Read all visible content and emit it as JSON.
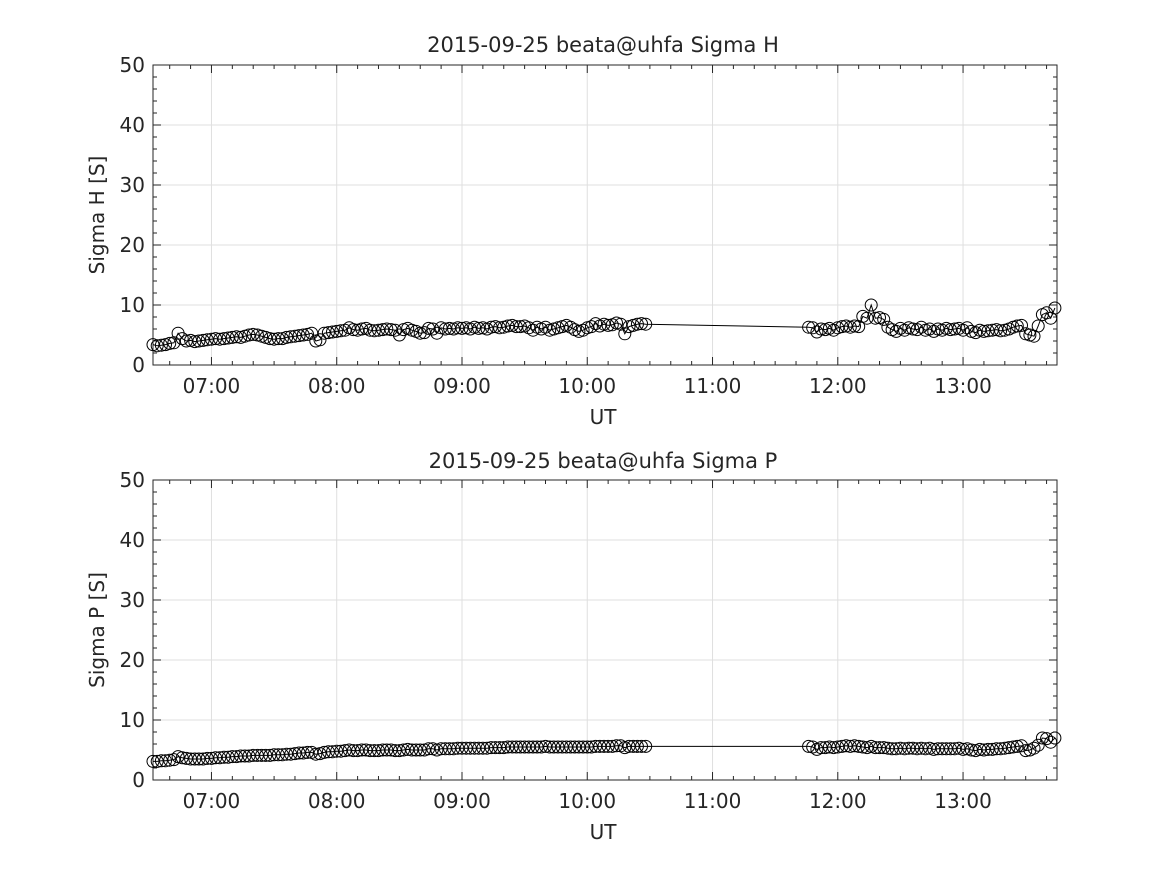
{
  "chart_data": [
    {
      "type": "scatter",
      "title": "2015-09-25  beata@uhfa Sigma H",
      "xlabel": "UT",
      "ylabel": "Sigma H [S]",
      "xlim": [
        "06:32",
        "13:45"
      ],
      "ylim": [
        0,
        50
      ],
      "x_ticks": [
        "07:00",
        "08:00",
        "09:00",
        "10:00",
        "11:00",
        "12:00",
        "13:00"
      ],
      "y_ticks": [
        "0",
        "10",
        "20",
        "30",
        "40",
        "50"
      ],
      "grid": true,
      "marker": "open-circle",
      "connected": true,
      "series": [
        {
          "x": [
            "06:32",
            "06:34",
            "06:36",
            "06:38",
            "06:40",
            "06:42",
            "06:44",
            "06:46",
            "06:48",
            "06:50",
            "06:52",
            "06:54",
            "06:56",
            "06:58",
            "07:00",
            "07:02",
            "07:04",
            "07:06",
            "07:08",
            "07:10",
            "07:12",
            "07:14",
            "07:16",
            "07:18",
            "07:20",
            "07:22",
            "07:24",
            "07:26",
            "07:28",
            "07:30",
            "07:32",
            "07:34",
            "07:36",
            "07:38",
            "07:40",
            "07:42",
            "07:44",
            "07:46",
            "07:48",
            "07:50",
            "07:52",
            "07:54",
            "07:56",
            "07:58",
            "08:00",
            "08:02",
            "08:04",
            "08:06",
            "08:08",
            "08:10",
            "08:12",
            "08:14",
            "08:16",
            "08:18",
            "08:20",
            "08:22",
            "08:24",
            "08:26",
            "08:28",
            "08:30",
            "08:32",
            "08:34",
            "08:36",
            "08:38",
            "08:40",
            "08:42",
            "08:44",
            "08:46",
            "08:48",
            "08:50",
            "08:52",
            "08:54",
            "08:56",
            "08:58",
            "09:00",
            "09:02",
            "09:04",
            "09:06",
            "09:08",
            "09:10",
            "09:12",
            "09:14",
            "09:16",
            "09:18",
            "09:20",
            "09:22",
            "09:24",
            "09:26",
            "09:28",
            "09:30",
            "09:32",
            "09:34",
            "09:36",
            "09:38",
            "09:40",
            "09:42",
            "09:44",
            "09:46",
            "09:48",
            "09:50",
            "09:52",
            "09:54",
            "09:56",
            "09:58",
            "10:00",
            "10:02",
            "10:04",
            "10:06",
            "10:08",
            "10:10",
            "10:12",
            "10:14",
            "10:16",
            "10:18",
            "10:20",
            "10:22",
            "10:24",
            "10:26",
            "10:28",
            "11:46",
            "11:48",
            "11:50",
            "11:52",
            "11:54",
            "11:56",
            "11:58",
            "12:00",
            "12:02",
            "12:04",
            "12:06",
            "12:08",
            "12:10",
            "12:12",
            "12:14",
            "12:16",
            "12:18",
            "12:20",
            "12:22",
            "12:24",
            "12:26",
            "12:28",
            "12:30",
            "12:32",
            "12:34",
            "12:36",
            "12:38",
            "12:40",
            "12:42",
            "12:44",
            "12:46",
            "12:48",
            "12:50",
            "12:52",
            "12:54",
            "12:56",
            "12:58",
            "13:00",
            "13:02",
            "13:04",
            "13:06",
            "13:08",
            "13:10",
            "13:12",
            "13:14",
            "13:16",
            "13:18",
            "13:20",
            "13:22",
            "13:24",
            "13:26",
            "13:28",
            "13:30",
            "13:32",
            "13:34",
            "13:36",
            "13:38",
            "13:40",
            "13:42",
            "13:44"
          ],
          "y": [
            3.4,
            3.2,
            3.3,
            3.4,
            3.6,
            3.7,
            5.3,
            4.4,
            4.0,
            4.1,
            3.9,
            4.0,
            4.1,
            4.2,
            4.3,
            4.4,
            4.3,
            4.4,
            4.5,
            4.6,
            4.7,
            4.6,
            4.8,
            5.0,
            5.1,
            5.0,
            4.8,
            4.6,
            4.4,
            4.3,
            4.4,
            4.4,
            4.6,
            4.7,
            4.8,
            4.9,
            5.0,
            5.1,
            5.3,
            4.0,
            4.2,
            5.3,
            5.4,
            5.5,
            5.6,
            5.7,
            5.8,
            6.2,
            5.9,
            5.8,
            6.0,
            6.1,
            5.8,
            5.7,
            5.8,
            5.9,
            6.0,
            5.9,
            5.8,
            5.0,
            5.9,
            6.1,
            5.8,
            5.6,
            5.3,
            5.4,
            6.1,
            6.0,
            5.3,
            6.2,
            6.0,
            6.1,
            6.0,
            6.2,
            6.1,
            6.2,
            6.0,
            6.3,
            6.1,
            6.2,
            6.0,
            6.3,
            6.4,
            6.2,
            6.3,
            6.5,
            6.6,
            6.4,
            6.4,
            6.5,
            6.2,
            5.8,
            6.3,
            6.0,
            6.3,
            5.8,
            6.0,
            6.2,
            6.4,
            6.6,
            6.3,
            5.9,
            5.6,
            5.8,
            6.2,
            6.4,
            6.9,
            6.5,
            6.8,
            6.6,
            6.7,
            7.0,
            6.8,
            5.2,
            6.4,
            6.6,
            6.8,
            6.9,
            6.8,
            6.3,
            6.2,
            5.5,
            6.0,
            5.9,
            6.1,
            5.8,
            6.2,
            6.4,
            6.5,
            6.3,
            6.5,
            6.4,
            8.1,
            7.8,
            10.0,
            7.8,
            7.9,
            7.6,
            6.3,
            5.9,
            5.6,
            6.1,
            5.8,
            6.2,
            6.0,
            5.9,
            6.3,
            5.8,
            6.0,
            5.6,
            6.0,
            5.8,
            6.1,
            5.9,
            6.0,
            6.1,
            5.8,
            6.2,
            5.6,
            5.4,
            5.8,
            5.6,
            5.7,
            5.8,
            5.9,
            5.7,
            5.8,
            6.0,
            6.3,
            6.5,
            6.6,
            5.2,
            5.0,
            4.8,
            6.5,
            8.4,
            8.7,
            7.8,
            9.5
          ]
        }
      ]
    },
    {
      "type": "scatter",
      "title": "2015-09-25  beata@uhfa Sigma P",
      "xlabel": "UT",
      "ylabel": "Sigma P [S]",
      "xlim": [
        "06:32",
        "13:45"
      ],
      "ylim": [
        0,
        50
      ],
      "x_ticks": [
        "07:00",
        "08:00",
        "09:00",
        "10:00",
        "11:00",
        "12:00",
        "13:00"
      ],
      "y_ticks": [
        "0",
        "10",
        "20",
        "30",
        "40",
        "50"
      ],
      "grid": true,
      "marker": "open-circle",
      "connected": true,
      "series": [
        {
          "x": [
            "06:32",
            "06:34",
            "06:36",
            "06:38",
            "06:40",
            "06:42",
            "06:44",
            "06:46",
            "06:48",
            "06:50",
            "06:52",
            "06:54",
            "06:56",
            "06:58",
            "07:00",
            "07:02",
            "07:04",
            "07:06",
            "07:08",
            "07:10",
            "07:12",
            "07:14",
            "07:16",
            "07:18",
            "07:20",
            "07:22",
            "07:24",
            "07:26",
            "07:28",
            "07:30",
            "07:32",
            "07:34",
            "07:36",
            "07:38",
            "07:40",
            "07:42",
            "07:44",
            "07:46",
            "07:48",
            "07:50",
            "07:52",
            "07:54",
            "07:56",
            "07:58",
            "08:00",
            "08:02",
            "08:04",
            "08:06",
            "08:08",
            "08:10",
            "08:12",
            "08:14",
            "08:16",
            "08:18",
            "08:20",
            "08:22",
            "08:24",
            "08:26",
            "08:28",
            "08:30",
            "08:32",
            "08:34",
            "08:36",
            "08:38",
            "08:40",
            "08:42",
            "08:44",
            "08:46",
            "08:48",
            "08:50",
            "08:52",
            "08:54",
            "08:56",
            "08:58",
            "09:00",
            "09:02",
            "09:04",
            "09:06",
            "09:08",
            "09:10",
            "09:12",
            "09:14",
            "09:16",
            "09:18",
            "09:20",
            "09:22",
            "09:24",
            "09:26",
            "09:28",
            "09:30",
            "09:32",
            "09:34",
            "09:36",
            "09:38",
            "09:40",
            "09:42",
            "09:44",
            "09:46",
            "09:48",
            "09:50",
            "09:52",
            "09:54",
            "09:56",
            "09:58",
            "10:00",
            "10:02",
            "10:04",
            "10:06",
            "10:08",
            "10:10",
            "10:12",
            "10:14",
            "10:16",
            "10:18",
            "10:20",
            "10:22",
            "10:24",
            "10:26",
            "10:28",
            "11:46",
            "11:48",
            "11:50",
            "11:52",
            "11:54",
            "11:56",
            "11:58",
            "12:00",
            "12:02",
            "12:04",
            "12:06",
            "12:08",
            "12:10",
            "12:12",
            "12:14",
            "12:16",
            "12:18",
            "12:20",
            "12:22",
            "12:24",
            "12:26",
            "12:28",
            "12:30",
            "12:32",
            "12:34",
            "12:36",
            "12:38",
            "12:40",
            "12:42",
            "12:44",
            "12:46",
            "12:48",
            "12:50",
            "12:52",
            "12:54",
            "12:56",
            "12:58",
            "13:00",
            "13:02",
            "13:04",
            "13:06",
            "13:08",
            "13:10",
            "13:12",
            "13:14",
            "13:16",
            "13:18",
            "13:20",
            "13:22",
            "13:24",
            "13:26",
            "13:28",
            "13:30",
            "13:32",
            "13:34",
            "13:36",
            "13:38",
            "13:40",
            "13:42",
            "13:44"
          ],
          "y": [
            3.1,
            3.1,
            3.2,
            3.2,
            3.3,
            3.4,
            3.9,
            3.7,
            3.6,
            3.5,
            3.5,
            3.5,
            3.5,
            3.6,
            3.6,
            3.7,
            3.7,
            3.8,
            3.8,
            3.9,
            3.9,
            4.0,
            4.0,
            4.0,
            4.1,
            4.1,
            4.1,
            4.1,
            4.1,
            4.2,
            4.2,
            4.2,
            4.3,
            4.3,
            4.4,
            4.5,
            4.5,
            4.6,
            4.6,
            4.3,
            4.4,
            4.6,
            4.7,
            4.7,
            4.8,
            4.8,
            4.9,
            5.0,
            4.9,
            4.9,
            5.0,
            5.0,
            4.9,
            4.9,
            4.9,
            5.0,
            5.0,
            5.0,
            4.9,
            4.9,
            5.0,
            5.1,
            5.0,
            5.0,
            5.0,
            5.0,
            5.2,
            5.2,
            5.0,
            5.2,
            5.2,
            5.2,
            5.2,
            5.3,
            5.3,
            5.3,
            5.3,
            5.3,
            5.3,
            5.3,
            5.3,
            5.4,
            5.4,
            5.4,
            5.4,
            5.5,
            5.5,
            5.5,
            5.5,
            5.5,
            5.5,
            5.5,
            5.5,
            5.5,
            5.6,
            5.5,
            5.5,
            5.5,
            5.5,
            5.5,
            5.5,
            5.5,
            5.5,
            5.5,
            5.5,
            5.5,
            5.6,
            5.6,
            5.6,
            5.6,
            5.6,
            5.7,
            5.7,
            5.4,
            5.6,
            5.6,
            5.6,
            5.6,
            5.6,
            5.6,
            5.5,
            5.1,
            5.4,
            5.4,
            5.5,
            5.4,
            5.5,
            5.6,
            5.7,
            5.6,
            5.7,
            5.6,
            5.5,
            5.4,
            5.6,
            5.4,
            5.4,
            5.4,
            5.3,
            5.2,
            5.2,
            5.3,
            5.2,
            5.3,
            5.3,
            5.2,
            5.3,
            5.2,
            5.3,
            5.1,
            5.2,
            5.2,
            5.2,
            5.2,
            5.2,
            5.3,
            5.1,
            5.2,
            5.0,
            4.9,
            5.1,
            5.0,
            5.1,
            5.1,
            5.2,
            5.2,
            5.3,
            5.4,
            5.5,
            5.6,
            5.7,
            4.9,
            5.0,
            5.3,
            5.8,
            7.0,
            6.9,
            6.3,
            7.0
          ]
        }
      ]
    }
  ]
}
